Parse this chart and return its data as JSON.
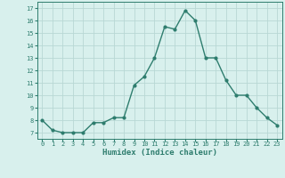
{
  "x": [
    0,
    1,
    2,
    3,
    4,
    5,
    6,
    7,
    8,
    9,
    10,
    11,
    12,
    13,
    14,
    15,
    16,
    17,
    18,
    19,
    20,
    21,
    22,
    23
  ],
  "y": [
    8,
    7.2,
    7,
    7,
    7,
    7.8,
    7.8,
    8.2,
    8.2,
    10.8,
    11.5,
    13,
    15.5,
    15.3,
    16.8,
    16,
    13,
    13,
    11.2,
    10,
    10,
    9,
    8.2,
    7.6
  ],
  "line_color": "#2e7d6e",
  "marker": "o",
  "marker_size": 2.0,
  "line_width": 1.0,
  "bg_color": "#d8f0ed",
  "grid_color": "#b8d8d4",
  "tick_color": "#2e7d6e",
  "xlabel": "Humidex (Indice chaleur)",
  "xlabel_fontsize": 6.5,
  "tick_fontsize": 5.0,
  "ylabel_ticks": [
    7,
    8,
    9,
    10,
    11,
    12,
    13,
    14,
    15,
    16,
    17
  ],
  "xlim": [
    -0.5,
    23.5
  ],
  "ylim": [
    6.5,
    17.5
  ]
}
